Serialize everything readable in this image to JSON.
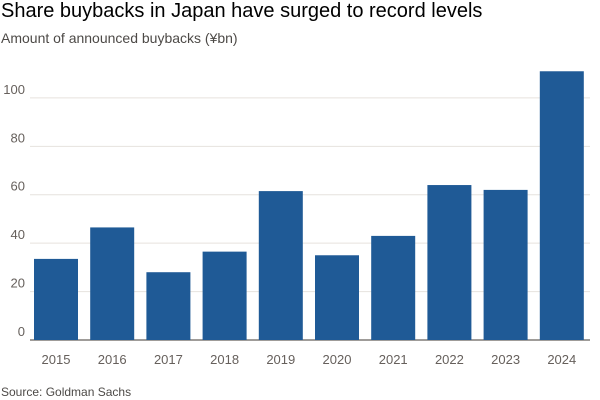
{
  "title": "Share buybacks in Japan have surged to record levels",
  "subtitle": "Amount of announced buybacks (¥bn)",
  "source": "Source: Goldman Sachs",
  "colors": {
    "bar": "#1f5a96",
    "grid": "#e6e2de",
    "axis": "#66605c"
  },
  "chart_data": {
    "type": "bar",
    "categories": [
      "2015",
      "2016",
      "2017",
      "2018",
      "2019",
      "2020",
      "2021",
      "2022",
      "2023",
      "2024"
    ],
    "values": [
      33.5,
      46.5,
      28,
      36.5,
      61.5,
      35,
      43,
      64,
      62,
      111
    ],
    "yticks": [
      0,
      20,
      40,
      60,
      80,
      100
    ],
    "ylim": [
      0,
      114
    ],
    "grid": true,
    "title": "Share buybacks in Japan have surged to record levels",
    "ylabel": "Amount of announced buybacks (¥bn)"
  }
}
